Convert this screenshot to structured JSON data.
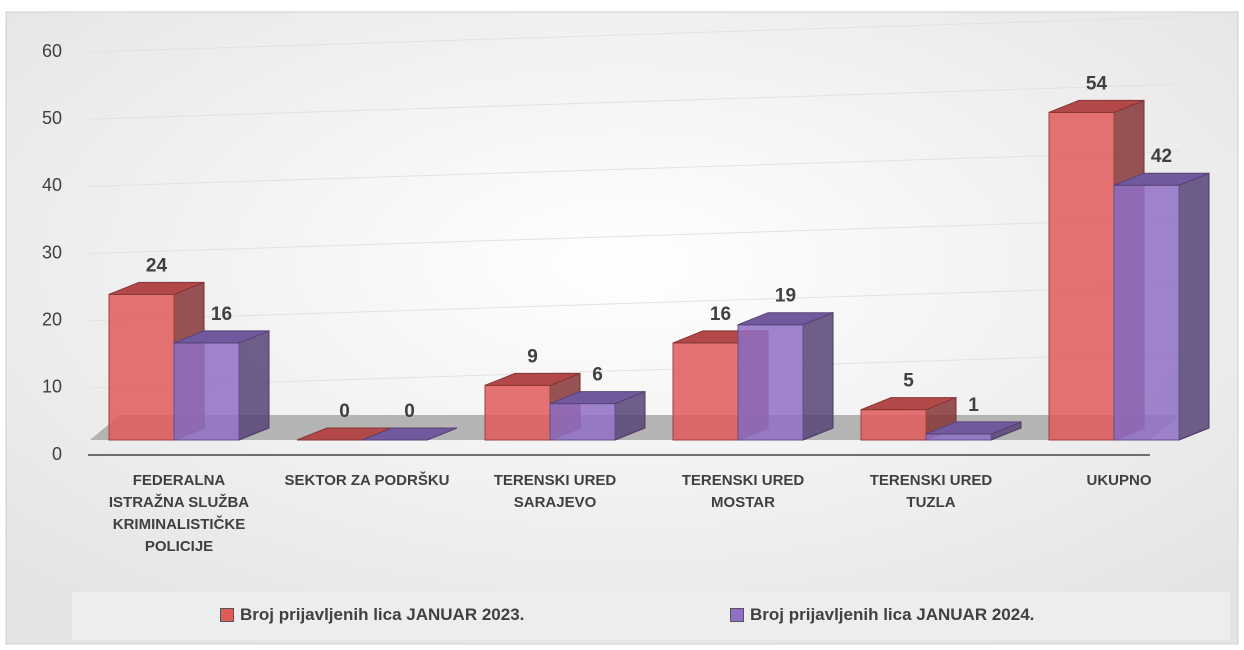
{
  "chart_data": {
    "type": "bar3d",
    "categories": [
      "FEDERALNA ISTRAŽNA SLUŽBA KRIMINALISTIČKE POLICIJE",
      "SEKTOR ZA PODRŠKU",
      "TERENSKI URED SARAJEVO",
      "TERENSKI URED MOSTAR",
      "TERENSKI URED TUZLA",
      "UKUPNO"
    ],
    "series": [
      {
        "name": "Broj prijavljenih lica JANUAR 2023.",
        "color": "#e05a5a",
        "values": [
          24,
          0,
          9,
          16,
          5,
          54
        ]
      },
      {
        "name": "Broj prijavljenih lica JANUAR 2024.",
        "color": "#8f6fc4",
        "values": [
          16,
          0,
          6,
          19,
          1,
          42
        ]
      }
    ],
    "ylim": [
      0,
      60
    ],
    "yticks": [
      0,
      10,
      20,
      30,
      40,
      50,
      60
    ],
    "grid": true,
    "legend": "bottom"
  }
}
